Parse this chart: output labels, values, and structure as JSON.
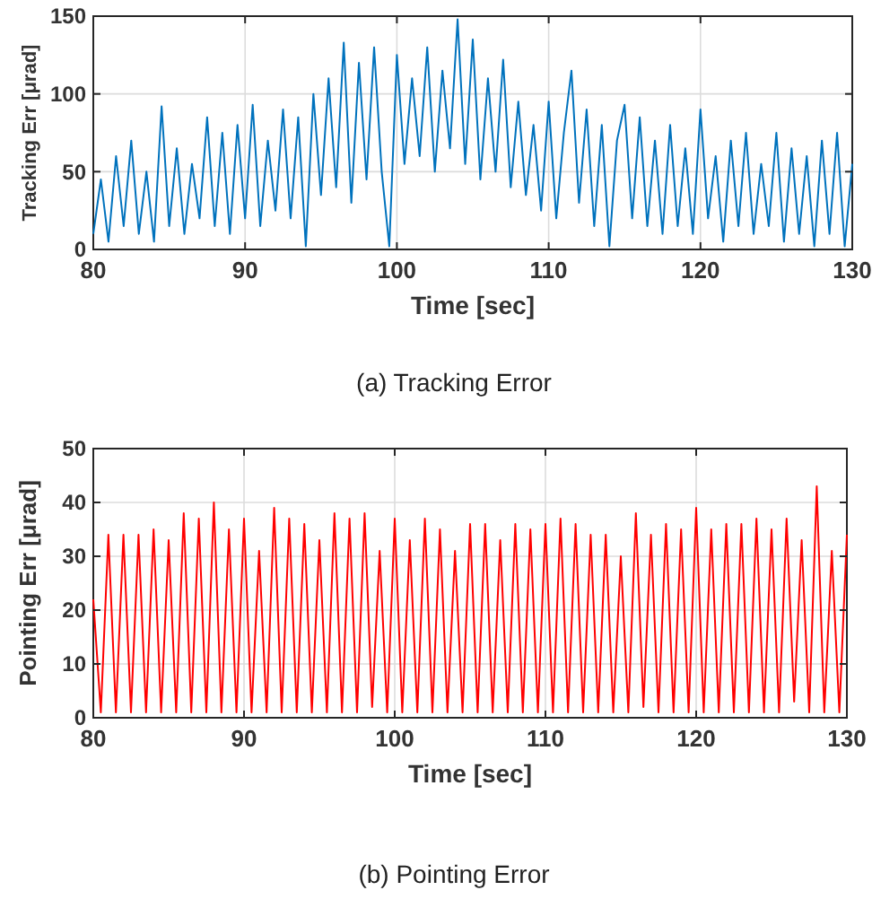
{
  "chart_data": [
    {
      "type": "line",
      "title": "(a)  Tracking  Error",
      "xlabel": "Time [sec]",
      "ylabel": "Tracking Err [μrad]",
      "xlim": [
        80,
        130
      ],
      "xticks": [
        80,
        90,
        100,
        110,
        120,
        130
      ],
      "ylim": [
        0,
        150
      ],
      "yticks": [
        0,
        50,
        100,
        150
      ],
      "grid": true,
      "series": [
        {
          "color": "#0072bd",
          "x": [
            80,
            80.5,
            81,
            81.5,
            82,
            82.5,
            83,
            83.5,
            84,
            84.5,
            85,
            85.5,
            86,
            86.5,
            87,
            87.5,
            88,
            88.5,
            89,
            89.5,
            90,
            90.5,
            91,
            91.5,
            92,
            92.5,
            93,
            93.5,
            94,
            94.5,
            95,
            95.5,
            96,
            96.5,
            97,
            97.5,
            98,
            98.5,
            99,
            99.5,
            100,
            100.5,
            101,
            101.5,
            102,
            102.5,
            103,
            103.5,
            104,
            104.5,
            105,
            105.5,
            106,
            106.5,
            107,
            107.5,
            108,
            108.5,
            109,
            109.5,
            110,
            110.5,
            111,
            111.5,
            112,
            112.5,
            113,
            113.5,
            114,
            114.5,
            115,
            115.5,
            116,
            116.5,
            117,
            117.5,
            118,
            118.5,
            119,
            119.5,
            120,
            120.5,
            121,
            121.5,
            122,
            122.5,
            123,
            123.5,
            124,
            124.5,
            125,
            125.5,
            126,
            126.5,
            127,
            127.5,
            128,
            128.5,
            129,
            129.5,
            130
          ],
          "values": [
            10,
            45,
            5,
            60,
            15,
            70,
            10,
            50,
            5,
            92,
            15,
            65,
            10,
            55,
            20,
            85,
            15,
            75,
            10,
            80,
            20,
            93,
            15,
            70,
            25,
            90,
            20,
            85,
            2,
            100,
            35,
            110,
            40,
            133,
            30,
            120,
            45,
            130,
            50,
            2,
            125,
            55,
            110,
            60,
            130,
            50,
            115,
            65,
            148,
            55,
            135,
            45,
            110,
            50,
            122,
            40,
            95,
            35,
            80,
            25,
            95,
            20,
            75,
            115,
            30,
            90,
            15,
            80,
            2,
            70,
            93,
            20,
            85,
            15,
            70,
            10,
            80,
            15,
            65,
            10,
            90,
            20,
            60,
            5,
            70,
            15,
            75,
            10,
            55,
            15,
            75,
            5,
            65,
            10,
            60,
            2,
            70,
            10,
            75,
            2,
            55
          ]
        }
      ]
    },
    {
      "type": "line",
      "title": "(b)  Pointing  Error",
      "xlabel": "Time [sec]",
      "ylabel": "Pointing Err  [μrad]",
      "xlim": [
        80,
        130
      ],
      "xticks": [
        80,
        90,
        100,
        110,
        120,
        130
      ],
      "ylim": [
        0,
        50
      ],
      "yticks": [
        0,
        10,
        20,
        30,
        40,
        50
      ],
      "grid": true,
      "series": [
        {
          "color": "#ff0000",
          "x": [
            80,
            80.5,
            81,
            81.5,
            82,
            82.5,
            83,
            83.5,
            84,
            84.5,
            85,
            85.5,
            86,
            86.5,
            87,
            87.5,
            88,
            88.5,
            89,
            89.5,
            90,
            90.5,
            91,
            91.5,
            92,
            92.5,
            93,
            93.5,
            94,
            94.5,
            95,
            95.5,
            96,
            96.5,
            97,
            97.5,
            98,
            98.5,
            99,
            99.5,
            100,
            100.5,
            101,
            101.5,
            102,
            102.5,
            103,
            103.5,
            104,
            104.5,
            105,
            105.5,
            106,
            106.5,
            107,
            107.5,
            108,
            108.5,
            109,
            109.5,
            110,
            110.5,
            111,
            111.5,
            112,
            112.5,
            113,
            113.5,
            114,
            114.5,
            115,
            115.5,
            116,
            116.5,
            117,
            117.5,
            118,
            118.5,
            119,
            119.5,
            120,
            120.5,
            121,
            121.5,
            122,
            122.5,
            123,
            123.5,
            124,
            124.5,
            125,
            125.5,
            126,
            126.5,
            127,
            127.5,
            128,
            128.5,
            129,
            129.5,
            130
          ],
          "values": [
            22,
            1,
            34,
            1,
            34,
            1,
            34,
            1,
            35,
            1,
            33,
            1,
            38,
            1,
            37,
            1,
            40,
            1,
            35,
            1,
            37,
            1,
            31,
            1,
            39,
            1,
            37,
            1,
            36,
            1,
            33,
            1,
            38,
            1,
            37,
            1,
            38,
            2,
            31,
            1,
            37,
            1,
            33,
            1,
            37,
            1,
            35,
            1,
            31,
            1,
            36,
            1,
            36,
            1,
            33,
            1,
            36,
            1,
            35,
            1,
            36,
            1,
            37,
            1,
            36,
            1,
            34,
            1,
            34,
            1,
            30,
            1,
            38,
            2,
            34,
            1,
            36,
            1,
            35,
            1,
            39,
            1,
            35,
            1,
            36,
            1,
            36,
            1,
            37,
            1,
            35,
            1,
            37,
            3,
            33,
            1,
            43,
            1,
            31,
            1,
            34
          ]
        }
      ]
    }
  ]
}
